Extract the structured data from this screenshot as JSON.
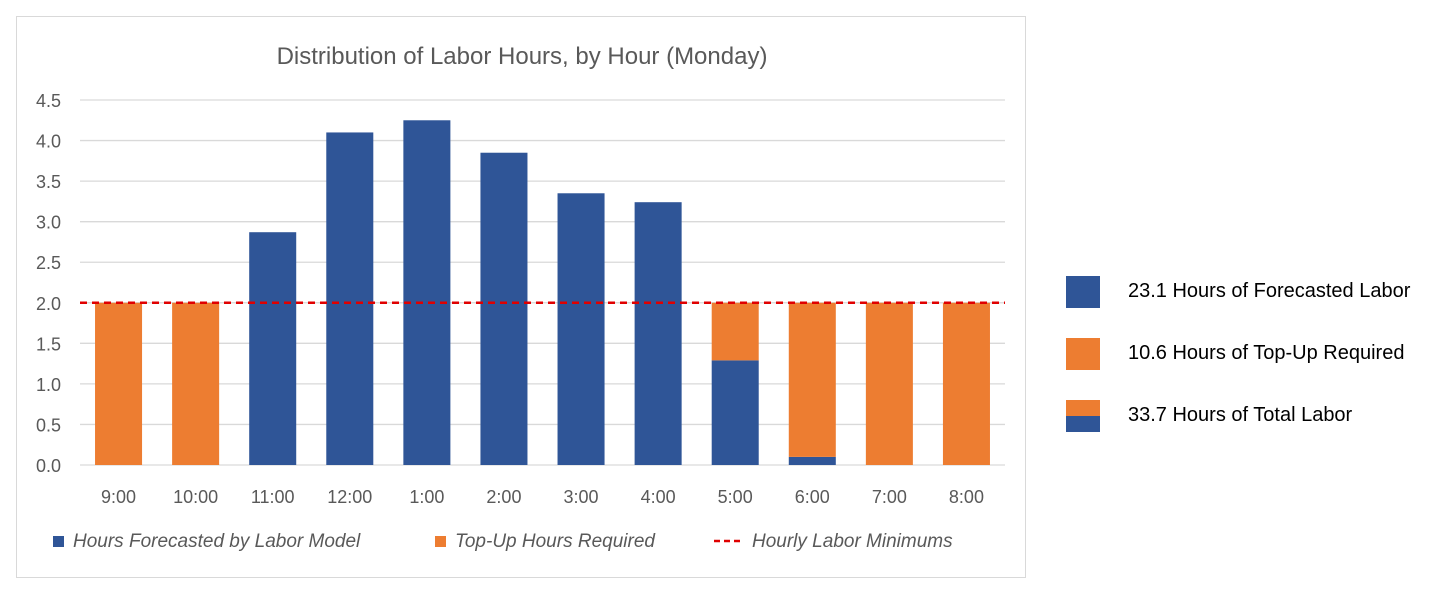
{
  "colors": {
    "forecast": "#2F5597",
    "topup": "#ED7D31",
    "minimum": "#E00000",
    "grid": "#d9d9d9",
    "text": "#595959"
  },
  "chart_data": {
    "type": "bar",
    "stacked": true,
    "title": "Distribution of Labor Hours, by Hour (Monday)",
    "xlabel": "",
    "ylabel": "",
    "ylim": [
      0,
      4.5
    ],
    "yticks": [
      "0.0",
      "0.5",
      "1.0",
      "1.5",
      "2.0",
      "2.5",
      "3.0",
      "3.5",
      "4.0",
      "4.5"
    ],
    "categories": [
      "9:00",
      "10:00",
      "11:00",
      "12:00",
      "1:00",
      "2:00",
      "3:00",
      "4:00",
      "5:00",
      "6:00",
      "7:00",
      "8:00"
    ],
    "series": [
      {
        "name": "Hours Forecasted by Labor Model",
        "values": [
          0,
          0,
          2.87,
          4.1,
          4.25,
          3.85,
          3.35,
          3.24,
          1.29,
          0.1,
          0,
          0
        ]
      },
      {
        "name": "Top-Up Hours Required",
        "values": [
          2.0,
          2.0,
          0,
          0,
          0,
          0,
          0,
          0,
          0.71,
          1.9,
          2.0,
          2.0
        ]
      }
    ],
    "reference_line": {
      "name": "Hourly Labor Minimums",
      "value": 2.0,
      "style": "dashed"
    },
    "grid": true,
    "legend_position": "bottom"
  },
  "side_legend": {
    "forecast_label": "23.1 Hours of Forecasted Labor",
    "topup_label": "10.6 Hours of Top-Up Required",
    "total_label": "33.7 Hours of Total Labor"
  }
}
